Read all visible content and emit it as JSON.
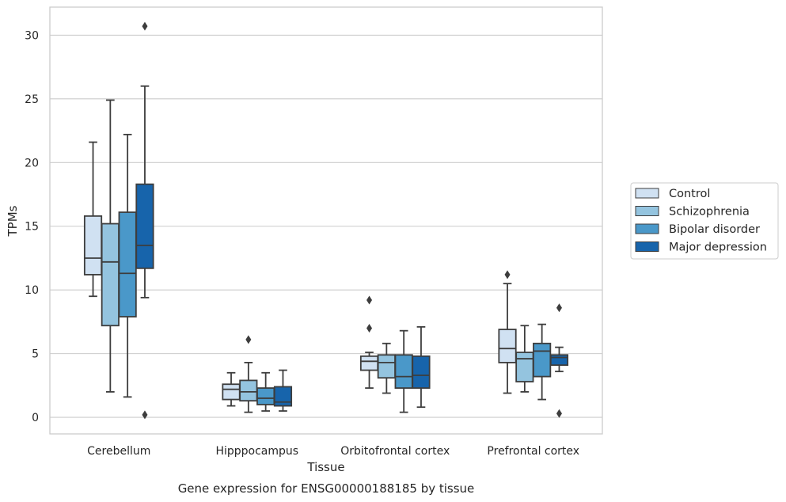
{
  "chart_data": {
    "type": "box",
    "title": "Gene expression for ENSG00000188185 by tissue",
    "xlabel": "Tissue",
    "ylabel": "TPMs",
    "ylim": [
      -1.3,
      32.2
    ],
    "yticks": [
      0,
      5,
      10,
      15,
      20,
      25,
      30
    ],
    "grid": "horizontal",
    "legend_position": "right",
    "categories": [
      "Cerebellum",
      "Hipppocampus",
      "Orbitofrontal cortex",
      "Prefrontal cortex"
    ],
    "series": [
      {
        "name": "Control",
        "color": "#d0e1f2",
        "boxes": [
          {
            "whislo": 9.5,
            "q1": 11.2,
            "med": 12.5,
            "q3": 15.8,
            "whishi": 21.6,
            "fliers": []
          },
          {
            "whislo": 0.9,
            "q1": 1.4,
            "med": 2.2,
            "q3": 2.6,
            "whishi": 3.5,
            "fliers": []
          },
          {
            "whislo": 2.3,
            "q1": 3.7,
            "med": 4.4,
            "q3": 4.8,
            "whishi": 5.1,
            "fliers": [
              7.0,
              9.2
            ]
          },
          {
            "whislo": 1.9,
            "q1": 4.3,
            "med": 5.4,
            "q3": 6.9,
            "whishi": 10.5,
            "fliers": [
              11.2
            ]
          }
        ]
      },
      {
        "name": "Schizophrenia",
        "color": "#94c4df",
        "boxes": [
          {
            "whislo": 2.0,
            "q1": 7.2,
            "med": 12.2,
            "q3": 15.2,
            "whishi": 24.9,
            "fliers": []
          },
          {
            "whislo": 0.4,
            "q1": 1.3,
            "med": 2.0,
            "q3": 2.9,
            "whishi": 4.3,
            "fliers": [
              6.1
            ]
          },
          {
            "whislo": 1.9,
            "q1": 3.1,
            "med": 4.3,
            "q3": 4.9,
            "whishi": 5.8,
            "fliers": []
          },
          {
            "whislo": 2.0,
            "q1": 2.8,
            "med": 4.6,
            "q3": 5.1,
            "whishi": 7.2,
            "fliers": []
          }
        ]
      },
      {
        "name": "Bipolar disorder",
        "color": "#4a98c9",
        "boxes": [
          {
            "whislo": 1.6,
            "q1": 7.9,
            "med": 11.3,
            "q3": 16.1,
            "whishi": 22.2,
            "fliers": []
          },
          {
            "whislo": 0.5,
            "q1": 1.0,
            "med": 1.5,
            "q3": 2.3,
            "whishi": 3.5,
            "fliers": []
          },
          {
            "whislo": 0.4,
            "q1": 2.3,
            "med": 3.2,
            "q3": 4.9,
            "whishi": 6.8,
            "fliers": []
          },
          {
            "whislo": 1.4,
            "q1": 3.2,
            "med": 5.2,
            "q3": 5.8,
            "whishi": 7.3,
            "fliers": []
          }
        ]
      },
      {
        "name": "Major depression",
        "color": "#1764ab",
        "boxes": [
          {
            "whislo": 9.4,
            "q1": 11.7,
            "med": 13.5,
            "q3": 18.3,
            "whishi": 26.0,
            "fliers": [
              0.2,
              30.7
            ]
          },
          {
            "whislo": 0.5,
            "q1": 0.9,
            "med": 1.2,
            "q3": 2.4,
            "whishi": 3.7,
            "fliers": []
          },
          {
            "whislo": 0.8,
            "q1": 2.3,
            "med": 3.3,
            "q3": 4.8,
            "whishi": 7.1,
            "fliers": []
          },
          {
            "whislo": 3.6,
            "q1": 4.1,
            "med": 4.7,
            "q3": 4.9,
            "whishi": 5.5,
            "fliers": [
              0.3,
              8.6
            ]
          }
        ]
      }
    ]
  }
}
